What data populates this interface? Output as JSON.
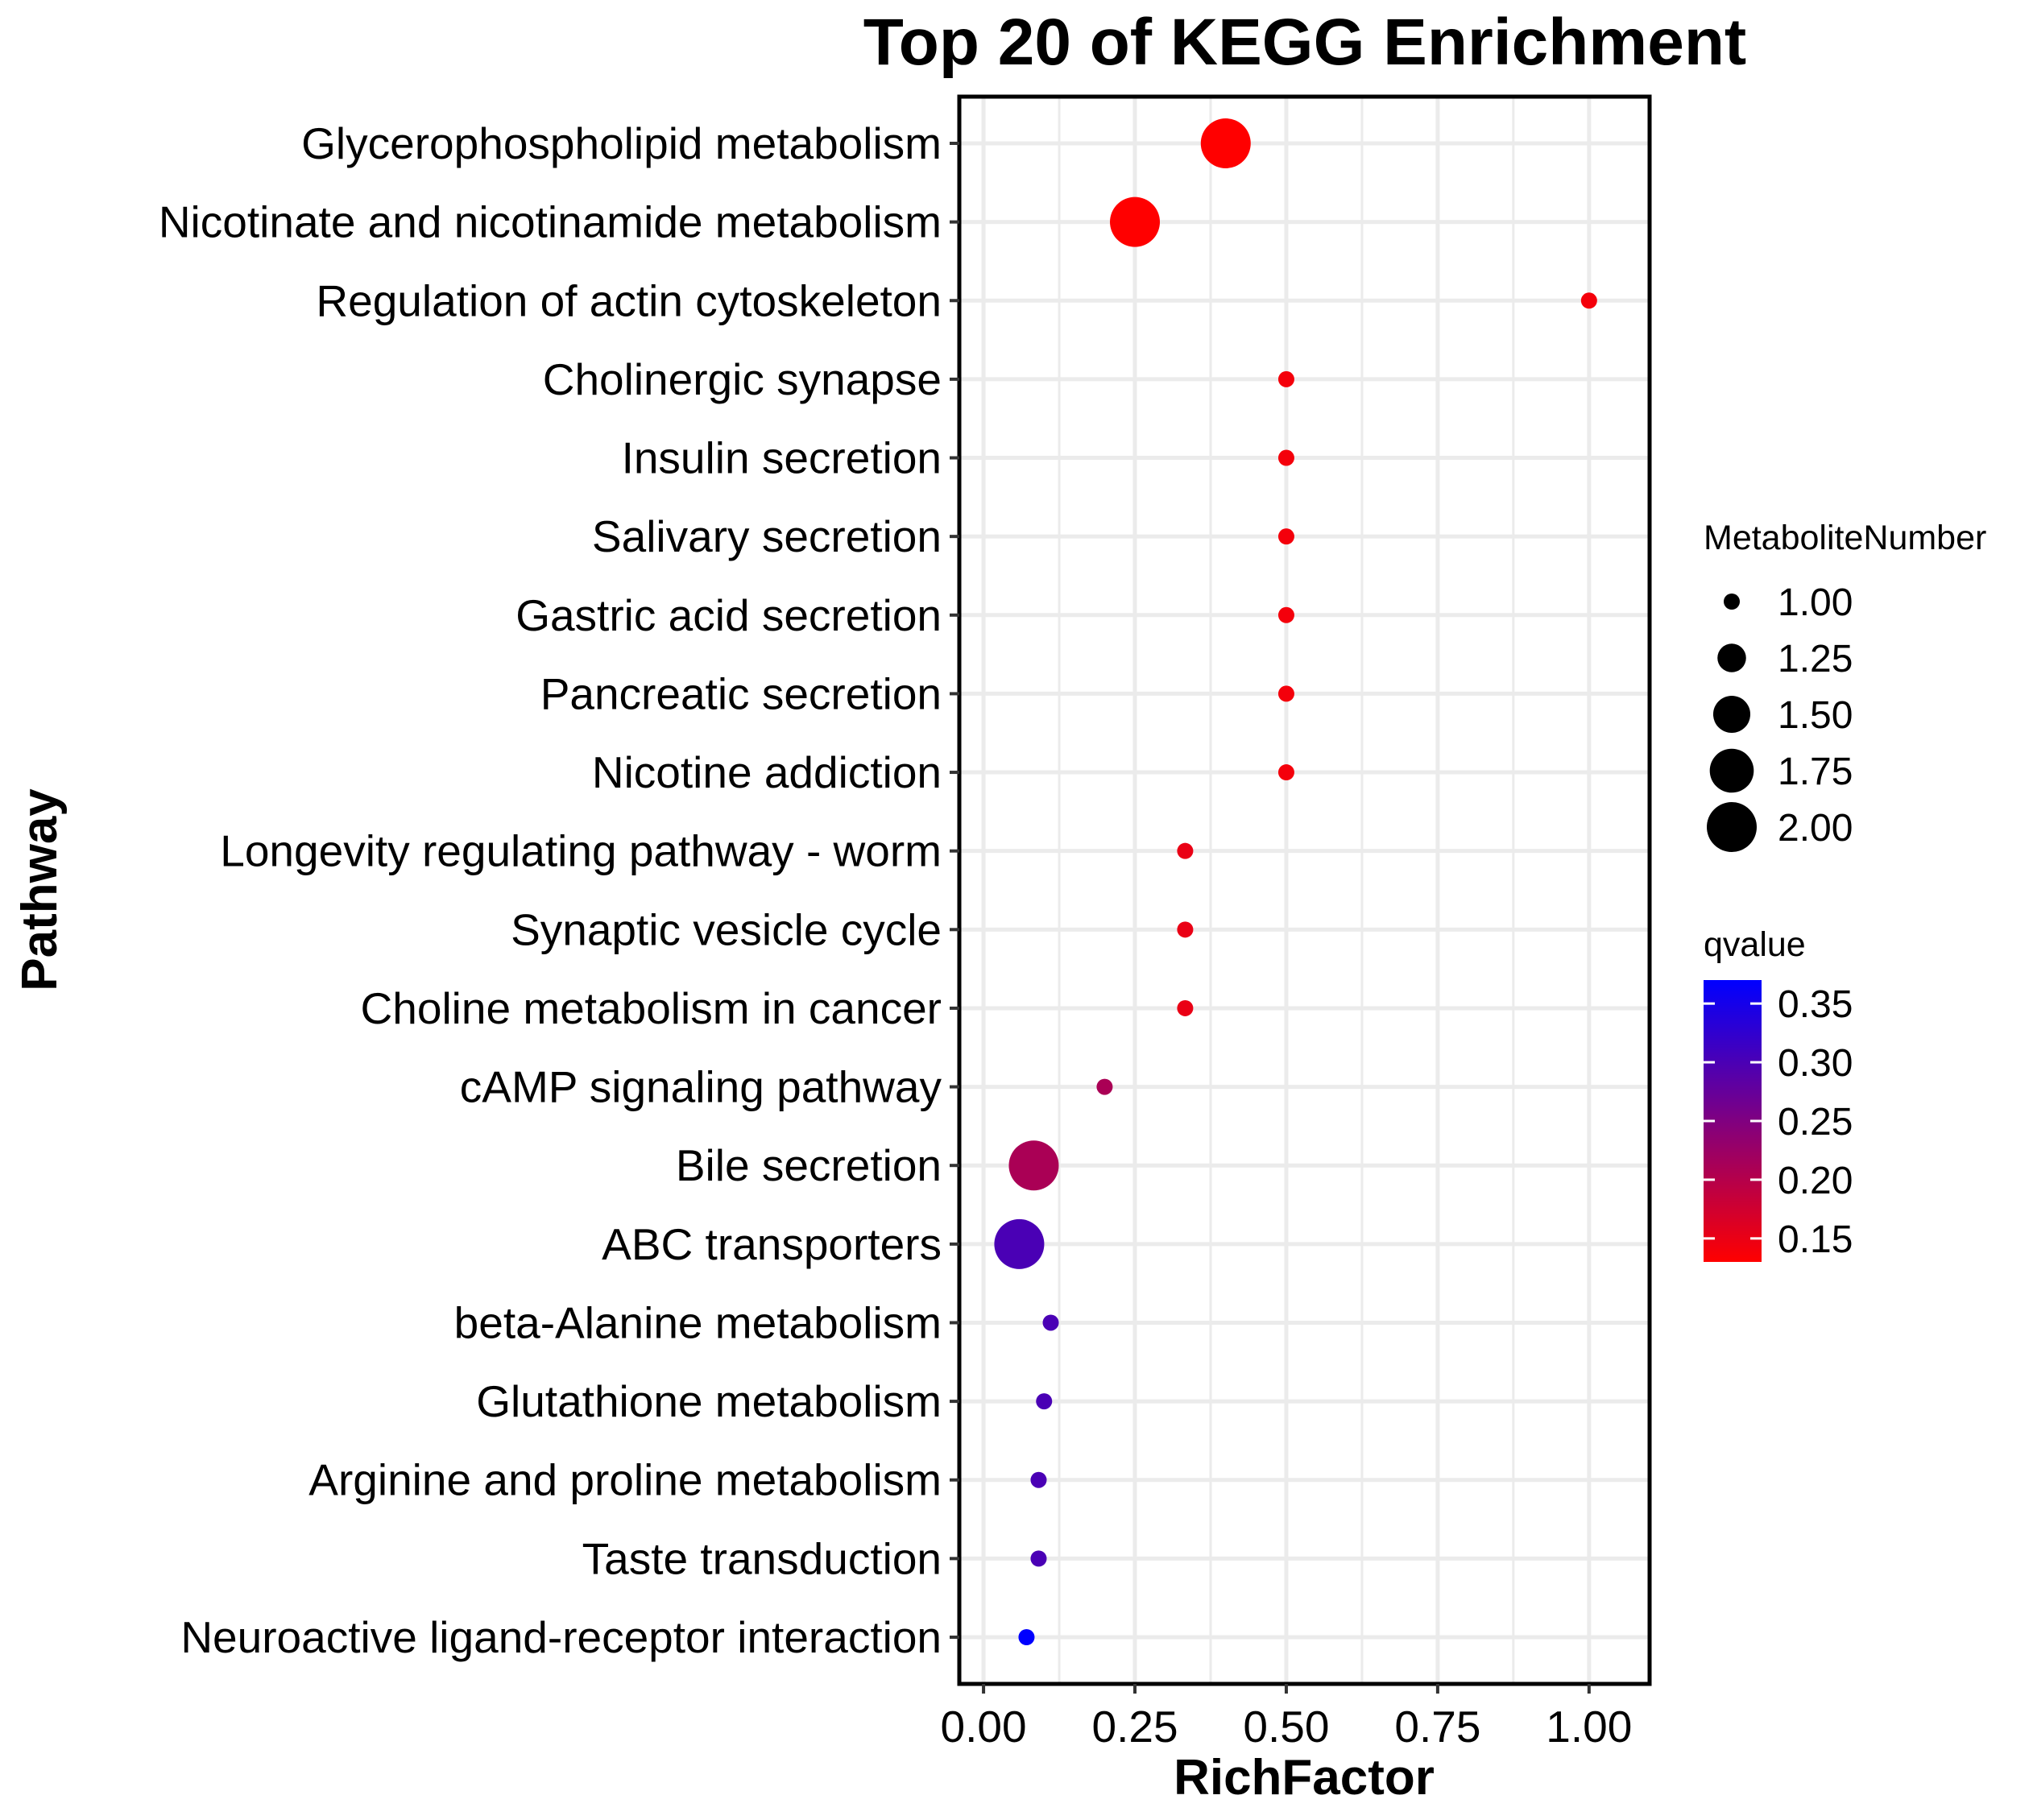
{
  "chart_data": {
    "type": "scatter",
    "title": "Top 20 of KEGG Enrichment",
    "xlabel": "RichFactor",
    "ylabel": "Pathway",
    "xlim": [
      -0.04,
      1.1
    ],
    "xticks": [
      0.0,
      0.25,
      0.5,
      0.75,
      1.0
    ],
    "xtick_labels": [
      "0.00",
      "0.25",
      "0.50",
      "0.75",
      "1.00"
    ],
    "grid": true,
    "points": [
      {
        "pathway": "Glycerophospholipid metabolism",
        "rich_factor": 0.4,
        "metabolite_number": 2,
        "qvalue": 0.13
      },
      {
        "pathway": "Nicotinate and nicotinamide metabolism",
        "rich_factor": 0.25,
        "metabolite_number": 2,
        "qvalue": 0.13
      },
      {
        "pathway": "Regulation of actin cytoskeleton",
        "rich_factor": 1.0,
        "metabolite_number": 1,
        "qvalue": 0.14
      },
      {
        "pathway": "Cholinergic synapse",
        "rich_factor": 0.5,
        "metabolite_number": 1,
        "qvalue": 0.14
      },
      {
        "pathway": "Insulin secretion",
        "rich_factor": 0.5,
        "metabolite_number": 1,
        "qvalue": 0.14
      },
      {
        "pathway": "Salivary secretion",
        "rich_factor": 0.5,
        "metabolite_number": 1,
        "qvalue": 0.14
      },
      {
        "pathway": "Gastric acid secretion",
        "rich_factor": 0.5,
        "metabolite_number": 1,
        "qvalue": 0.14
      },
      {
        "pathway": "Pancreatic secretion",
        "rich_factor": 0.5,
        "metabolite_number": 1,
        "qvalue": 0.14
      },
      {
        "pathway": "Nicotine addiction",
        "rich_factor": 0.5,
        "metabolite_number": 1,
        "qvalue": 0.14
      },
      {
        "pathway": "Longevity regulating pathway - worm",
        "rich_factor": 0.333,
        "metabolite_number": 1,
        "qvalue": 0.15
      },
      {
        "pathway": "Synaptic vesicle cycle",
        "rich_factor": 0.333,
        "metabolite_number": 1,
        "qvalue": 0.15
      },
      {
        "pathway": "Choline metabolism in cancer",
        "rich_factor": 0.333,
        "metabolite_number": 1,
        "qvalue": 0.15
      },
      {
        "pathway": "cAMP signaling pathway",
        "rich_factor": 0.2,
        "metabolite_number": 1,
        "qvalue": 0.21
      },
      {
        "pathway": "Bile secretion",
        "rich_factor": 0.083,
        "metabolite_number": 2,
        "qvalue": 0.21
      },
      {
        "pathway": "ABC transporters",
        "rich_factor": 0.059,
        "metabolite_number": 2,
        "qvalue": 0.3
      },
      {
        "pathway": "beta-Alanine metabolism",
        "rich_factor": 0.111,
        "metabolite_number": 1,
        "qvalue": 0.3
      },
      {
        "pathway": "Glutathione metabolism",
        "rich_factor": 0.1,
        "metabolite_number": 1,
        "qvalue": 0.3
      },
      {
        "pathway": "Arginine and proline metabolism",
        "rich_factor": 0.091,
        "metabolite_number": 1,
        "qvalue": 0.3
      },
      {
        "pathway": "Taste transduction",
        "rich_factor": 0.091,
        "metabolite_number": 1,
        "qvalue": 0.3
      },
      {
        "pathway": "Neuroactive ligand-receptor interaction",
        "rich_factor": 0.071,
        "metabolite_number": 1,
        "qvalue": 0.37
      }
    ],
    "size_legend": {
      "title": "MetaboliteNumber",
      "values": [
        1.0,
        1.25,
        1.5,
        1.75,
        2.0
      ],
      "labels": [
        "1.00",
        "1.25",
        "1.50",
        "1.75",
        "2.00"
      ]
    },
    "color_legend": {
      "title": "qvalue",
      "min": 0.13,
      "max": 0.37,
      "low_color": "#ff0000",
      "high_color": "#0000ff",
      "breaks": [
        0.35,
        0.3,
        0.25,
        0.2,
        0.15
      ],
      "labels": [
        "0.35",
        "0.30",
        "0.25",
        "0.20",
        "0.15"
      ]
    }
  }
}
